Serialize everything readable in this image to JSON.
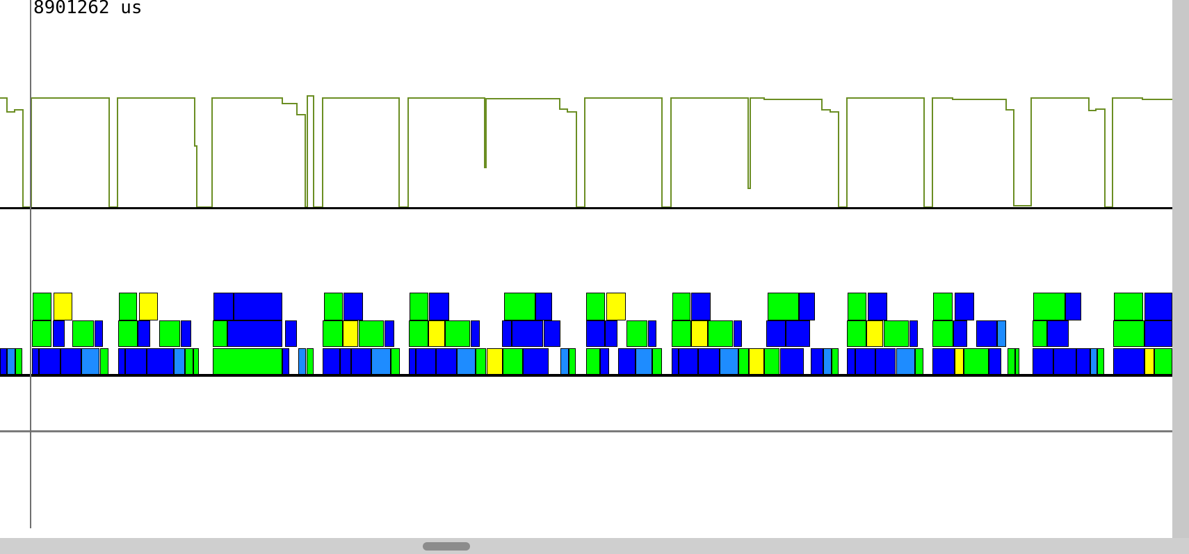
{
  "timeline": {
    "cursor_time_label": "8901262 us"
  },
  "colors": {
    "waveform": "#6b8e23",
    "block_green": "#00ff00",
    "block_blue": "#0000ff",
    "block_light_blue": "#1e8cff",
    "block_yellow": "#ffff00",
    "baseline": "#000000"
  },
  "icons": {
    "scrollbar_thumb": "horizontal-scroll-thumb"
  }
}
